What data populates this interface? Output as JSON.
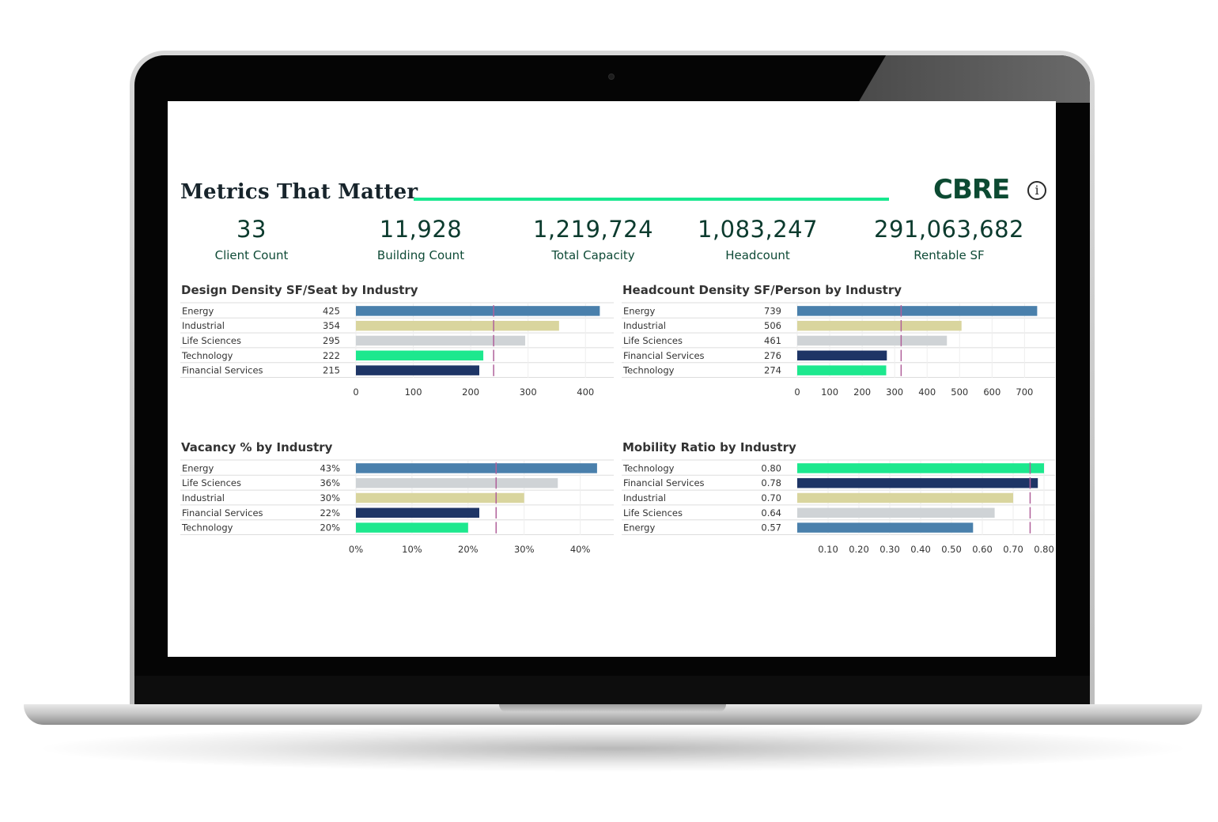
{
  "title": "Metrics That Matter",
  "brand": "CBRE",
  "info_icon": "info-icon",
  "colors": {
    "accent_rule": "#17e88f",
    "energy": "#4a80ac",
    "industrial": "#d9d59e",
    "life_sciences": "#cfd3d6",
    "technology": "#1de88e",
    "financial_services": "#1e3566",
    "reference_line": "#b0609a"
  },
  "kpis": [
    {
      "value": "33",
      "label": "Client Count"
    },
    {
      "value": "11,928",
      "label": "Building Count"
    },
    {
      "value": "1,219,724",
      "label": "Total Capacity"
    },
    {
      "value": "1,083,247",
      "label": "Headcount"
    },
    {
      "value": "291,063,682",
      "label": "Rentable SF"
    }
  ],
  "chart_data": [
    {
      "type": "bar",
      "orientation": "horizontal",
      "title": "Design Density SF/Seat by Industry",
      "categories": [
        "Energy",
        "Industrial",
        "Life Sciences",
        "Technology",
        "Financial Services"
      ],
      "values": [
        425,
        354,
        295,
        222,
        215
      ],
      "value_labels": [
        "425",
        "354",
        "295",
        "222",
        "215"
      ],
      "category_colors": [
        "#4a80ac",
        "#d9d59e",
        "#cfd3d6",
        "#1de88e",
        "#1e3566"
      ],
      "xlim": [
        0,
        430
      ],
      "xticks": [
        0,
        100,
        200,
        300,
        400
      ],
      "xtick_labels": [
        "0",
        "100",
        "200",
        "300",
        "400"
      ],
      "reference_line": 240
    },
    {
      "type": "bar",
      "orientation": "horizontal",
      "title": "Headcount Density SF/Person by Industry",
      "categories": [
        "Energy",
        "Industrial",
        "Life Sciences",
        "Financial Services",
        "Technology"
      ],
      "values": [
        739,
        506,
        461,
        276,
        274
      ],
      "value_labels": [
        "739",
        "506",
        "461",
        "276",
        "274"
      ],
      "category_colors": [
        "#4a80ac",
        "#d9d59e",
        "#cfd3d6",
        "#1e3566",
        "#1de88e"
      ],
      "xlim": [
        0,
        760
      ],
      "xticks": [
        0,
        100,
        200,
        300,
        400,
        500,
        600,
        700
      ],
      "xtick_labels": [
        "0",
        "100",
        "200",
        "300",
        "400",
        "500",
        "600",
        "700"
      ],
      "reference_line": 320
    },
    {
      "type": "bar",
      "orientation": "horizontal",
      "title": "Vacancy % by Industry",
      "categories": [
        "Energy",
        "Life Sciences",
        "Industrial",
        "Financial Services",
        "Technology"
      ],
      "values": [
        43,
        36,
        30,
        22,
        20
      ],
      "value_labels": [
        "43%",
        "36%",
        "30%",
        "22%",
        "20%"
      ],
      "category_colors": [
        "#4a80ac",
        "#cfd3d6",
        "#d9d59e",
        "#1e3566",
        "#1de88e"
      ],
      "xlim": [
        0,
        44
      ],
      "xticks": [
        0,
        10,
        20,
        30,
        40
      ],
      "xtick_labels": [
        "0%",
        "10%",
        "20%",
        "30%",
        "40%"
      ],
      "reference_line": 25
    },
    {
      "type": "bar",
      "orientation": "horizontal",
      "title": "Mobility Ratio by Industry",
      "categories": [
        "Technology",
        "Financial Services",
        "Industrial",
        "Life Sciences",
        "Energy"
      ],
      "values": [
        0.8,
        0.78,
        0.7,
        0.64,
        0.57
      ],
      "value_labels": [
        "0.80",
        "0.78",
        "0.70",
        "0.64",
        "0.57"
      ],
      "category_colors": [
        "#1de88e",
        "#1e3566",
        "#d9d59e",
        "#cfd3d6",
        "#4a80ac"
      ],
      "xlim": [
        0.0,
        0.8
      ],
      "xticks": [
        0.1,
        0.2,
        0.3,
        0.4,
        0.5,
        0.6,
        0.7,
        0.8
      ],
      "xtick_labels": [
        "0.10",
        "0.20",
        "0.30",
        "0.40",
        "0.50",
        "0.60",
        "0.70",
        "0.80"
      ],
      "reference_line": 0.755
    }
  ]
}
